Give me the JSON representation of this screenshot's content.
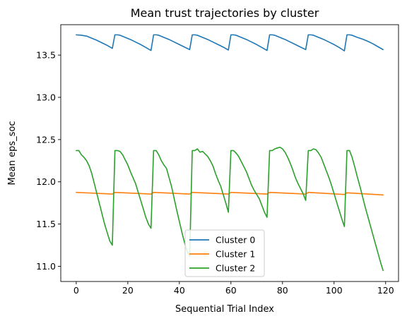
{
  "chart_data": {
    "type": "line",
    "title": "Mean trust trajectories by cluster",
    "xlabel": "Sequential Trial Index",
    "ylabel": "Mean eps_soc",
    "xlim": [
      -6,
      125
    ],
    "ylim": [
      10.82,
      13.86
    ],
    "xticks": [
      0,
      20,
      40,
      60,
      80,
      100,
      120
    ],
    "xtick_labels": [
      "0",
      "20",
      "40",
      "60",
      "80",
      "100",
      "120"
    ],
    "yticks": [
      11.0,
      11.5,
      12.0,
      12.5,
      13.0,
      13.5
    ],
    "ytick_labels": [
      "11.0",
      "11.5",
      "12.0",
      "12.5",
      "13.0",
      "13.5"
    ],
    "legend_position": "lower-center",
    "grid": false,
    "series": [
      {
        "name": "Cluster 0",
        "color": "#1f77b4",
        "x": [
          0,
          2,
          4,
          6,
          8,
          10,
          12,
          14,
          15,
          16,
          17,
          19,
          21,
          23,
          25,
          27,
          29,
          30,
          31,
          32,
          34,
          36,
          38,
          40,
          42,
          44,
          45,
          46,
          47,
          49,
          51,
          53,
          55,
          57,
          59,
          60,
          61,
          62,
          64,
          66,
          68,
          70,
          72,
          74,
          75,
          76,
          77,
          79,
          81,
          83,
          85,
          87,
          89,
          90,
          91,
          92,
          94,
          96,
          98,
          100,
          102,
          104,
          105,
          106,
          107,
          109,
          111,
          113,
          115,
          117,
          119
        ],
        "y": [
          13.74,
          13.735,
          13.725,
          13.7,
          13.675,
          13.645,
          13.615,
          13.58,
          13.74,
          13.74,
          13.735,
          13.71,
          13.685,
          13.655,
          13.625,
          13.59,
          13.555,
          13.74,
          13.74,
          13.735,
          13.71,
          13.685,
          13.655,
          13.625,
          13.595,
          13.565,
          13.74,
          13.74,
          13.735,
          13.71,
          13.685,
          13.655,
          13.625,
          13.595,
          13.56,
          13.74,
          13.74,
          13.735,
          13.71,
          13.685,
          13.655,
          13.625,
          13.59,
          13.555,
          13.74,
          13.74,
          13.735,
          13.71,
          13.685,
          13.655,
          13.625,
          13.595,
          13.565,
          13.74,
          13.74,
          13.735,
          13.71,
          13.685,
          13.655,
          13.625,
          13.59,
          13.55,
          13.74,
          13.74,
          13.735,
          13.71,
          13.69,
          13.665,
          13.635,
          13.6,
          13.565
        ]
      },
      {
        "name": "Cluster 1",
        "color": "#ff7f0e",
        "x": [
          0,
          14,
          15,
          29,
          30,
          44,
          45,
          59,
          60,
          74,
          75,
          89,
          90,
          104,
          105,
          119
        ],
        "y": [
          11.875,
          11.855,
          11.875,
          11.855,
          11.875,
          11.855,
          11.875,
          11.855,
          11.875,
          11.855,
          11.875,
          11.855,
          11.875,
          11.85,
          11.87,
          11.845
        ],
        "x_detail": "nearly flat around 11.85-11.88"
      },
      {
        "name": "Cluster 2",
        "color": "#2ca02c",
        "x": [
          0,
          1,
          2,
          3,
          4,
          5,
          6,
          7,
          8,
          9,
          10,
          11,
          12,
          13,
          14,
          15,
          16,
          17,
          18,
          19,
          20,
          21,
          22,
          23,
          24,
          25,
          26,
          27,
          28,
          29,
          30,
          31,
          32,
          33,
          34,
          35,
          36,
          37,
          38,
          39,
          40,
          41,
          42,
          43,
          44,
          45,
          46,
          47,
          48,
          49,
          50,
          51,
          52,
          53,
          54,
          55,
          56,
          57,
          58,
          59,
          60,
          61,
          62,
          63,
          64,
          65,
          66,
          67,
          68,
          69,
          70,
          71,
          72,
          73,
          74,
          75,
          76,
          77,
          78,
          79,
          80,
          81,
          82,
          83,
          84,
          85,
          86,
          87,
          88,
          89,
          90,
          91,
          92,
          93,
          94,
          95,
          96,
          97,
          98,
          99,
          100,
          101,
          102,
          103,
          104,
          105,
          106,
          107,
          108,
          109,
          110,
          111,
          112,
          113,
          114,
          115,
          116,
          117,
          118,
          119
        ],
        "y": [
          12.37,
          12.37,
          12.32,
          12.29,
          12.25,
          12.19,
          12.1,
          11.98,
          11.86,
          11.74,
          11.62,
          11.5,
          11.4,
          11.3,
          11.25,
          12.37,
          12.37,
          12.36,
          12.32,
          12.26,
          12.2,
          12.12,
          12.05,
          11.98,
          11.88,
          11.78,
          11.68,
          11.58,
          11.5,
          11.45,
          12.37,
          12.37,
          12.32,
          12.25,
          12.2,
          12.16,
          12.05,
          11.94,
          11.8,
          11.66,
          11.53,
          11.4,
          11.28,
          11.18,
          11.12,
          12.37,
          12.37,
          12.39,
          12.35,
          12.36,
          12.33,
          12.3,
          12.25,
          12.19,
          12.1,
          12.02,
          11.95,
          11.85,
          11.75,
          11.64,
          12.37,
          12.37,
          12.34,
          12.3,
          12.24,
          12.18,
          12.12,
          12.04,
          11.96,
          11.9,
          11.85,
          11.8,
          11.72,
          11.64,
          11.58,
          12.37,
          12.37,
          12.39,
          12.4,
          12.41,
          12.39,
          12.35,
          12.29,
          12.22,
          12.14,
          12.05,
          11.98,
          11.92,
          11.86,
          11.78,
          12.37,
          12.37,
          12.39,
          12.38,
          12.34,
          12.29,
          12.21,
          12.13,
          12.05,
          11.96,
          11.86,
          11.76,
          11.66,
          11.56,
          11.47,
          12.37,
          12.37,
          12.29,
          12.18,
          12.06,
          11.95,
          11.83,
          11.71,
          11.6,
          11.49,
          11.38,
          11.27,
          11.16,
          11.05,
          10.95
        ]
      }
    ]
  }
}
